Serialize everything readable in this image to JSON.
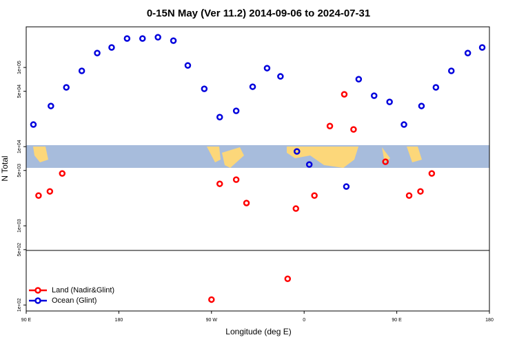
{
  "chart_data": {
    "type": "scatter",
    "title": "0-15N May (Ver 11.2)   2014-09-06 to 2024-07-31",
    "x_label": "Longitude (deg E)",
    "y_label": "N Total",
    "log_y": true,
    "legend": "bottom-left",
    "xlim": [
      90,
      540
    ],
    "ylim": [
      84,
      326000
    ],
    "xticks": [
      {
        "value": 90,
        "label": "90 E"
      },
      {
        "value": 180,
        "label": "180"
      },
      {
        "value": 270,
        "label": "90 W"
      },
      {
        "value": 360,
        "label": "0"
      },
      {
        "value": 450,
        "label": "90 E"
      },
      {
        "value": 540,
        "label": "180"
      }
    ],
    "yticks": [
      {
        "value": 100,
        "label": "1e+02"
      },
      {
        "value": 500,
        "label": "5e+02"
      },
      {
        "value": 1000,
        "label": "1e+03"
      },
      {
        "value": 5000,
        "label": "5e+03"
      },
      {
        "value": 10000,
        "label": "1e+04"
      },
      {
        "value": 50000,
        "label": "5e+04"
      },
      {
        "value": 100000,
        "label": "1e+05"
      }
    ],
    "series": [
      {
        "name": "Land (Nadir&Glint)",
        "color": "#ff0000",
        "x": [
          102,
          113,
          125,
          278,
          294,
          304,
          270,
          352,
          344,
          370,
          385,
          399,
          408,
          439,
          462,
          473,
          484
        ],
        "values": [
          2410,
          2720,
          4580,
          3390,
          3830,
          1940,
          117,
          1650,
          214,
          2410,
          18200,
          45800,
          16500,
          6440,
          2410,
          2720,
          4580
        ]
      },
      {
        "name": "Ocean (Glint)",
        "color": "#0000dd",
        "x": [
          97,
          114,
          129,
          144,
          159,
          173,
          188,
          203,
          218,
          233,
          247,
          263,
          278,
          294,
          310,
          324,
          337,
          353,
          365,
          401,
          413,
          428,
          443,
          457,
          474,
          488,
          503,
          519,
          533
        ],
        "values": [
          19000,
          32600,
          56000,
          90600,
          152000,
          179000,
          232000,
          232000,
          241000,
          218000,
          106000,
          53700,
          23600,
          28300,
          57100,
          98000,
          77100,
          8700,
          5940,
          3130,
          71100,
          44000,
          36700,
          19000,
          32600,
          56000,
          90600,
          152000,
          179000
        ]
      }
    ]
  }
}
